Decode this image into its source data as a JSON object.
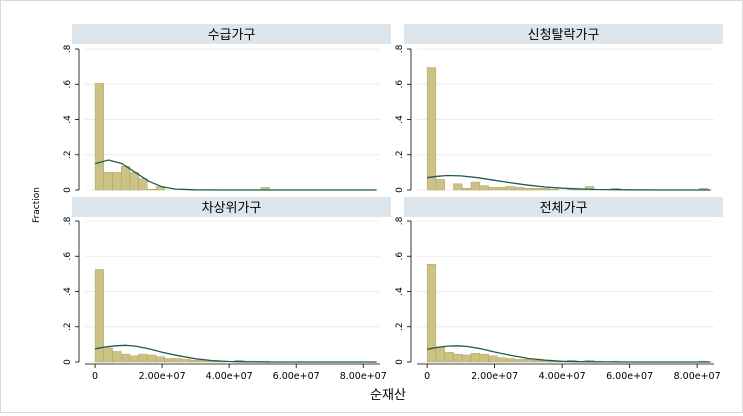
{
  "chart_data": {
    "type": "bar",
    "ylabel": "Fraction",
    "xlabel": "순재산",
    "xlim": [
      -3000000,
      85000000
    ],
    "ylim": [
      0,
      0.8
    ],
    "x_ticks": [
      0,
      20000000,
      40000000,
      60000000,
      80000000
    ],
    "x_tick_labels": [
      "0",
      "2.00e+07",
      "4.00e+07",
      "6.00e+07",
      "8.00e+07"
    ],
    "y_ticks": [
      0,
      0.2,
      0.4,
      0.6,
      0.8
    ],
    "y_tick_labels": [
      "0",
      ".2",
      ".4",
      ".6",
      ".8"
    ],
    "bin_width": 2600000,
    "bar_color": "#cdc285",
    "bar_edge_color": "#a69a57",
    "curve_color": "#1f5c4f",
    "panel_header_color": "#dde6ec",
    "grid": true,
    "panels": [
      {
        "name": "수급가구",
        "bin_starts": [
          0,
          2600000,
          5200000,
          7800000,
          10400000,
          13000000,
          15600000,
          18200000,
          20800000,
          23400000,
          26000000,
          28600000,
          31200000,
          33800000,
          36400000,
          39000000,
          41600000,
          44200000,
          46800000,
          49400000
        ],
        "values": [
          0.605,
          0.1,
          0.1,
          0.135,
          0.1,
          0.065,
          0.005,
          0.02,
          0.0,
          0.0,
          0.0,
          0.0,
          0.0,
          0.0,
          0.0,
          0.0,
          0.0,
          0.0,
          0.0,
          0.015
        ],
        "curve": {
          "x": [
            0,
            4000000,
            8000000,
            12000000,
            16000000,
            20000000,
            24000000,
            30000000,
            40000000,
            60000000,
            84000000
          ],
          "y": [
            0.15,
            0.17,
            0.15,
            0.1,
            0.05,
            0.018,
            0.005,
            0.001,
            0.0,
            0.0,
            0.0
          ]
        }
      },
      {
        "name": "신청탈락가구",
        "bin_starts": [
          0,
          2600000,
          5200000,
          7800000,
          10400000,
          13000000,
          15600000,
          18200000,
          20800000,
          23400000,
          26000000,
          28600000,
          31200000,
          33800000,
          36400000,
          39000000,
          41600000,
          44200000,
          46800000,
          49400000,
          52000000,
          54600000,
          57200000,
          59800000,
          62400000,
          65000000,
          67600000,
          70200000,
          72800000,
          75400000,
          78000000,
          80600000
        ],
        "values": [
          0.695,
          0.06,
          0.0,
          0.035,
          0.01,
          0.045,
          0.025,
          0.015,
          0.015,
          0.02,
          0.015,
          0.01,
          0.01,
          0.01,
          0.005,
          0.0,
          0.01,
          0.005,
          0.02,
          0.0,
          0.0,
          0.01,
          0.0,
          0.0,
          0.0,
          0.0,
          0.0,
          0.0,
          0.0,
          0.0,
          0.0,
          0.01
        ],
        "curve": {
          "x": [
            0,
            3000000,
            6000000,
            10000000,
            15000000,
            20000000,
            25000000,
            30000000,
            35000000,
            40000000,
            45000000,
            50000000,
            55000000,
            60000000,
            70000000,
            84000000
          ],
          "y": [
            0.07,
            0.078,
            0.082,
            0.08,
            0.07,
            0.055,
            0.04,
            0.027,
            0.017,
            0.01,
            0.006,
            0.003,
            0.002,
            0.001,
            0.0,
            0.0
          ]
        }
      },
      {
        "name": "차상위가구",
        "bin_starts": [
          0,
          2600000,
          5200000,
          7800000,
          10400000,
          13000000,
          15600000,
          18200000,
          20800000,
          23400000,
          26000000,
          28600000,
          31200000,
          33800000,
          36400000,
          39000000,
          41600000,
          44200000,
          46800000,
          49400000
        ],
        "values": [
          0.525,
          0.08,
          0.06,
          0.045,
          0.035,
          0.045,
          0.04,
          0.03,
          0.02,
          0.02,
          0.015,
          0.01,
          0.01,
          0.01,
          0.005,
          0.0,
          0.01,
          0.005,
          0.005,
          0.005
        ],
        "curve": {
          "x": [
            0,
            3000000,
            6000000,
            9000000,
            12000000,
            16000000,
            20000000,
            25000000,
            30000000,
            35000000,
            40000000,
            45000000,
            50000000,
            60000000,
            84000000
          ],
          "y": [
            0.075,
            0.085,
            0.092,
            0.095,
            0.09,
            0.075,
            0.055,
            0.035,
            0.018,
            0.008,
            0.003,
            0.001,
            0.0,
            0.0,
            0.0
          ]
        }
      },
      {
        "name": "전체가구",
        "bin_starts": [
          0,
          2600000,
          5200000,
          7800000,
          10400000,
          13000000,
          15600000,
          18200000,
          20800000,
          23400000,
          26000000,
          28600000,
          31200000,
          33800000,
          36400000,
          39000000,
          41600000,
          44200000,
          46800000,
          49400000,
          52000000,
          54600000,
          57200000,
          59800000,
          62400000,
          65000000,
          67600000,
          70200000,
          72800000,
          75400000,
          78000000,
          80600000
        ],
        "values": [
          0.555,
          0.085,
          0.055,
          0.045,
          0.04,
          0.05,
          0.045,
          0.035,
          0.025,
          0.02,
          0.015,
          0.015,
          0.01,
          0.01,
          0.005,
          0.005,
          0.01,
          0.005,
          0.01,
          0.005,
          0.0,
          0.005,
          0.0,
          0.0,
          0.0,
          0.0,
          0.0,
          0.0,
          0.0,
          0.0,
          0.0,
          0.005
        ],
        "curve": {
          "x": [
            0,
            3000000,
            6000000,
            9000000,
            12000000,
            16000000,
            20000000,
            25000000,
            30000000,
            35000000,
            40000000,
            45000000,
            50000000,
            60000000,
            84000000
          ],
          "y": [
            0.072,
            0.083,
            0.09,
            0.092,
            0.088,
            0.075,
            0.057,
            0.037,
            0.02,
            0.01,
            0.004,
            0.0015,
            0.0005,
            0.0,
            0.0
          ]
        }
      }
    ]
  }
}
